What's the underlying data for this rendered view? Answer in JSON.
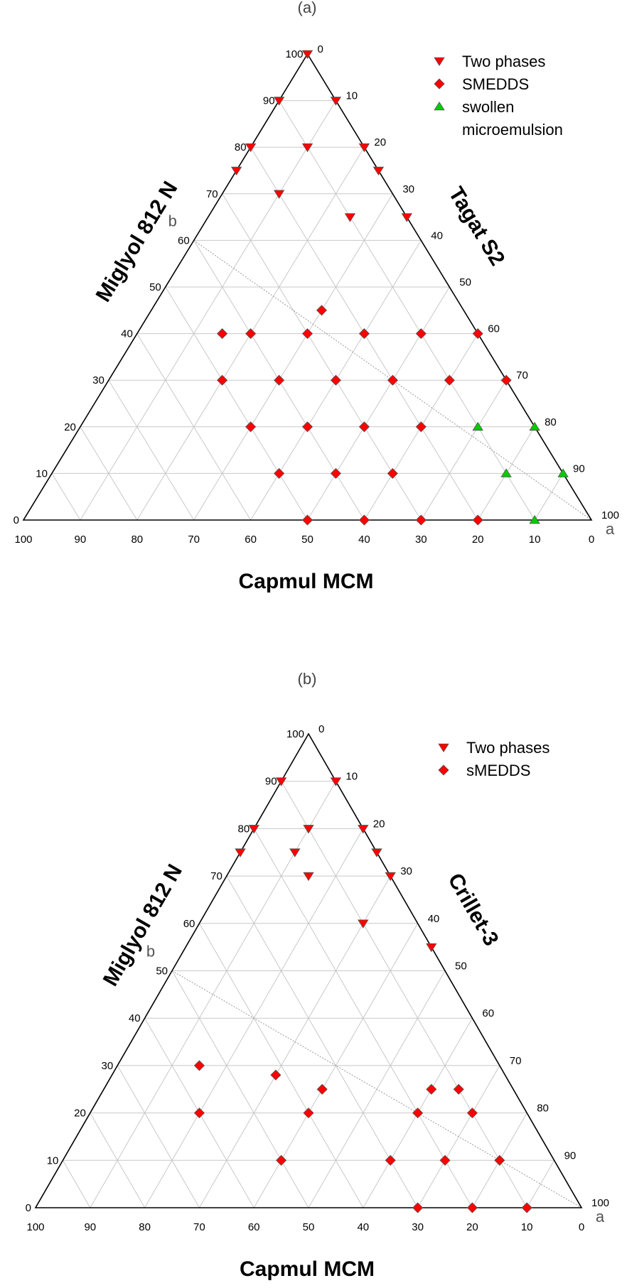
{
  "chart_data": [
    {
      "type": "scatter",
      "subtype": "ternary",
      "panel_label": "(a)",
      "axes": {
        "left": "Miglyol 812 N",
        "right": "Tagat S2",
        "bottom": "Capmul MCM"
      },
      "corner_labels": {
        "b": "b",
        "a": "a"
      },
      "left_ticks": [
        "0",
        "10",
        "20",
        "30",
        "40",
        "50",
        "60",
        "70",
        "80",
        "90",
        "100"
      ],
      "right_ticks": [
        "0",
        "10",
        "20",
        "30",
        "40",
        "50",
        "60",
        "70",
        "80",
        "90",
        "100"
      ],
      "bottom_ticks": [
        "100",
        "90",
        "80",
        "70",
        "60",
        "50",
        "40",
        "30",
        "20",
        "10",
        "0"
      ],
      "ranges": {
        "left": [
          0,
          100
        ],
        "right": [
          0,
          100
        ],
        "bottom": [
          0,
          100
        ]
      },
      "grid": true,
      "legend_position": "top-right",
      "dilution_line": {
        "from": {
          "left": 60,
          "right": 0
        },
        "to": {
          "left": 0,
          "right": 100
        }
      },
      "series": [
        {
          "name": "Two phases",
          "marker": "triangle-down",
          "color": "#ff0000",
          "points": [
            {
              "left": 100,
              "right": 0
            },
            {
              "left": 90,
              "right": 0
            },
            {
              "left": 90,
              "right": 10
            },
            {
              "left": 80,
              "right": 0
            },
            {
              "left": 80,
              "right": 10
            },
            {
              "left": 80,
              "right": 20
            },
            {
              "left": 75,
              "right": 0
            },
            {
              "left": 75,
              "right": 25
            },
            {
              "left": 70,
              "right": 10
            },
            {
              "left": 65,
              "right": 25
            },
            {
              "left": 65,
              "right": 35
            }
          ]
        },
        {
          "name": "SMEDDS",
          "marker": "diamond",
          "color": "#ff0000",
          "points": [
            {
              "left": 45,
              "right": 30
            },
            {
              "left": 40,
              "right": 15
            },
            {
              "left": 40,
              "right": 20
            },
            {
              "left": 40,
              "right": 30
            },
            {
              "left": 40,
              "right": 40
            },
            {
              "left": 40,
              "right": 50
            },
            {
              "left": 40,
              "right": 60
            },
            {
              "left": 30,
              "right": 20
            },
            {
              "left": 30,
              "right": 30
            },
            {
              "left": 30,
              "right": 40
            },
            {
              "left": 30,
              "right": 50
            },
            {
              "left": 30,
              "right": 60
            },
            {
              "left": 30,
              "right": 70
            },
            {
              "left": 20,
              "right": 30
            },
            {
              "left": 20,
              "right": 40
            },
            {
              "left": 20,
              "right": 50
            },
            {
              "left": 20,
              "right": 60
            },
            {
              "left": 10,
              "right": 40
            },
            {
              "left": 10,
              "right": 50
            },
            {
              "left": 10,
              "right": 60
            },
            {
              "left": 0,
              "right": 50
            },
            {
              "left": 0,
              "right": 60
            },
            {
              "left": 0,
              "right": 70
            },
            {
              "left": 0,
              "right": 80
            }
          ]
        },
        {
          "name": "swollen\nmicroemulsion",
          "marker": "triangle-up",
          "color": "#00cc00",
          "points": [
            {
              "left": 20,
              "right": 70
            },
            {
              "left": 20,
              "right": 80
            },
            {
              "left": 10,
              "right": 80
            },
            {
              "left": 10,
              "right": 90
            },
            {
              "left": 0,
              "right": 90
            }
          ]
        }
      ]
    },
    {
      "type": "scatter",
      "subtype": "ternary",
      "panel_label": "(b)",
      "axes": {
        "left": "Miglyol 812 N",
        "right": "Crillet-3",
        "bottom": "Capmul MCM"
      },
      "corner_labels": {
        "b": "b",
        "a": "a"
      },
      "left_ticks": [
        "0",
        "10",
        "20",
        "30",
        "40",
        "50",
        "60",
        "70",
        "80",
        "90",
        "100"
      ],
      "right_ticks": [
        "0",
        "10",
        "20",
        "30",
        "40",
        "50",
        "60",
        "70",
        "80",
        "90",
        "100"
      ],
      "bottom_ticks": [
        "100",
        "90",
        "80",
        "70",
        "60",
        "50",
        "40",
        "30",
        "20",
        "10",
        "0"
      ],
      "ranges": {
        "left": [
          0,
          100
        ],
        "right": [
          0,
          100
        ],
        "bottom": [
          0,
          100
        ]
      },
      "grid": true,
      "legend_position": "top-right",
      "dilution_line": {
        "from": {
          "left": 50,
          "right": 0
        },
        "to": {
          "left": 0,
          "right": 100
        }
      },
      "series": [
        {
          "name": "Two phases",
          "marker": "triangle-down",
          "color": "#ff0000",
          "points": [
            {
              "left": 90,
              "right": 0
            },
            {
              "left": 90,
              "right": 10
            },
            {
              "left": 80,
              "right": 0
            },
            {
              "left": 80,
              "right": 10
            },
            {
              "left": 80,
              "right": 20
            },
            {
              "left": 75,
              "right": 0
            },
            {
              "left": 75,
              "right": 10
            },
            {
              "left": 75,
              "right": 25
            },
            {
              "left": 70,
              "right": 15
            },
            {
              "left": 70,
              "right": 30
            },
            {
              "left": 60,
              "right": 30
            },
            {
              "left": 55,
              "right": 45
            }
          ]
        },
        {
          "name": "sMEDDS",
          "marker": "diamond",
          "color": "#ff0000",
          "points": [
            {
              "left": 30,
              "right": 15
            },
            {
              "left": 28,
              "right": 30
            },
            {
              "left": 25,
              "right": 40
            },
            {
              "left": 25,
              "right": 60
            },
            {
              "left": 25,
              "right": 65
            },
            {
              "left": 20,
              "right": 20
            },
            {
              "left": 20,
              "right": 40
            },
            {
              "left": 20,
              "right": 60
            },
            {
              "left": 20,
              "right": 70
            },
            {
              "left": 10,
              "right": 40
            },
            {
              "left": 10,
              "right": 60
            },
            {
              "left": 10,
              "right": 70
            },
            {
              "left": 10,
              "right": 80
            },
            {
              "left": 0,
              "right": 70
            },
            {
              "left": 0,
              "right": 80
            },
            {
              "left": 0,
              "right": 90
            }
          ]
        }
      ]
    }
  ]
}
